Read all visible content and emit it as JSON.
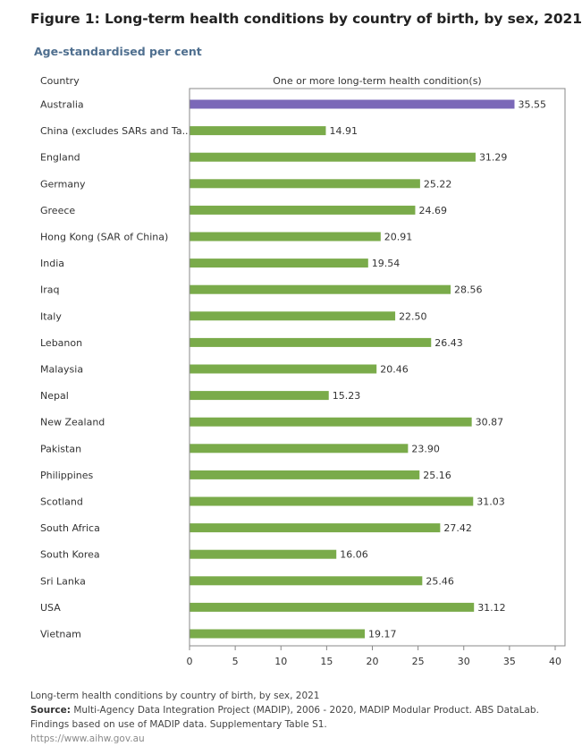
{
  "header": {
    "title": "Figure 1: Long-term health conditions by country of birth, by sex, 2021",
    "subtitle": "Age-standardised per cent",
    "column_country": "Country",
    "column_measure": "One or more long-term health condition(s)"
  },
  "colors": {
    "highlight": "#7b68b8",
    "bar": "#7aab4a",
    "axis": "#888888",
    "gridline": "#e8e8e8",
    "text": "#333333"
  },
  "chart_data": {
    "type": "bar",
    "orientation": "horizontal",
    "title": "Figure 1: Long-term health conditions by country of birth, by sex, 2021",
    "subtitle": "Age-standardised per cent",
    "xlabel": "One or more long-term health condition(s)",
    "ylabel": "Country",
    "xlim": [
      0,
      40
    ],
    "xticks": [
      0,
      5,
      10,
      15,
      20,
      25,
      30,
      35,
      40
    ],
    "highlight_category": "Australia",
    "categories": [
      "Australia",
      "China (excludes SARs and Ta..",
      "England",
      "Germany",
      "Greece",
      "Hong Kong (SAR of China)",
      "India",
      "Iraq",
      "Italy",
      "Lebanon",
      "Malaysia",
      "Nepal",
      "New Zealand",
      "Pakistan",
      "Philippines",
      "Scotland",
      "South Africa",
      "South Korea",
      "Sri Lanka",
      "USA",
      "Vietnam"
    ],
    "values": [
      35.55,
      14.91,
      31.29,
      25.22,
      24.69,
      20.91,
      19.54,
      28.56,
      22.5,
      26.43,
      20.46,
      15.23,
      30.87,
      23.9,
      25.16,
      31.03,
      27.42,
      16.06,
      25.46,
      31.12,
      19.17
    ],
    "value_labels": [
      "35.55",
      "14.91",
      "31.29",
      "25.22",
      "24.69",
      "20.91",
      "19.54",
      "28.56",
      "22.50",
      "26.43",
      "20.46",
      "15.23",
      "30.87",
      "23.90",
      "25.16",
      "31.03",
      "27.42",
      "16.06",
      "25.46",
      "31.12",
      "19.17"
    ]
  },
  "footer": {
    "caption": "Long-term health conditions by country of birth, by sex, 2021",
    "source_label": "Source:",
    "source_text": "Multi-Agency Data Integration Project (MADIP), 2006 - 2020, MADIP Modular Product. ABS DataLab. Findings based on use of MADIP data. Supplementary Table S1.",
    "link": "https://www.aihw.gov.au"
  }
}
